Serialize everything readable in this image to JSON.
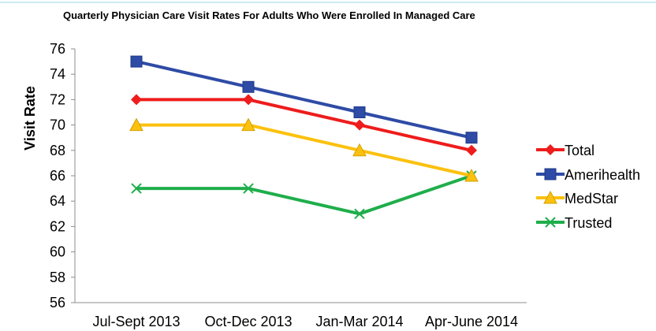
{
  "chart_data": {
    "type": "line",
    "title": "Quarterly Physician  Care Visit Rates For Adults Who Were Enrolled In Managed Care",
    "xlabel": "",
    "ylabel": "Visit Rate",
    "categories": [
      "Jul-Sept 2013",
      "Oct-Dec 2013",
      "Jan-Mar 2014",
      "Apr-June 2014"
    ],
    "ylim": [
      56,
      76
    ],
    "yticks": [
      "56",
      "58",
      "60",
      "62",
      "64",
      "66",
      "68",
      "70",
      "72",
      "74",
      "76"
    ],
    "grid": false,
    "legend_position": "right",
    "series": [
      {
        "name": "Total",
        "values": [
          72,
          72,
          70,
          68
        ],
        "color": "#ee1c1c",
        "marker": "diamond"
      },
      {
        "name": "Amerihealth",
        "values": [
          75,
          73,
          71,
          69
        ],
        "color": "#2e4ba6",
        "marker": "square"
      },
      {
        "name": "MedStar",
        "values": [
          70,
          70,
          68,
          66
        ],
        "color": "#fcc10f",
        "marker": "triangle"
      },
      {
        "name": "Trusted",
        "values": [
          65,
          65,
          63,
          66
        ],
        "color": "#1fae4b",
        "marker": "x"
      }
    ]
  }
}
